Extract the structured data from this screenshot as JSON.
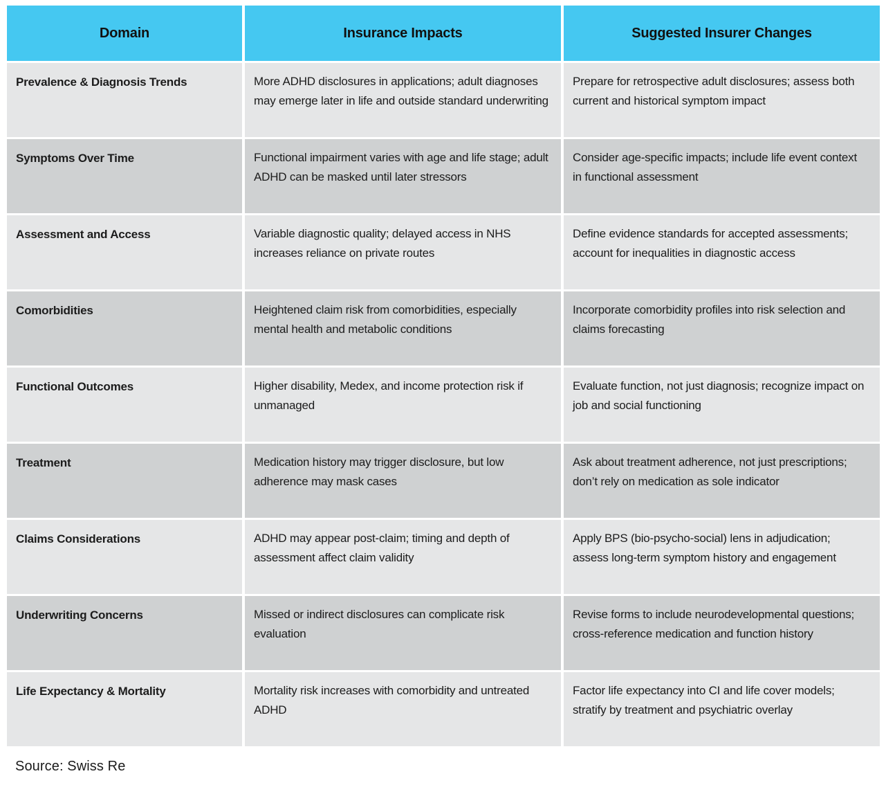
{
  "colors": {
    "header_bg": "#45C8F1",
    "row_light": "#E5E6E7",
    "row_dark": "#CFD1D2",
    "text": "#1C1C1C"
  },
  "header": {
    "domain": "Domain",
    "impacts": "Insurance Impacts",
    "changes": "Suggested Insurer Changes"
  },
  "rows": [
    {
      "domain": "Prevalence & Diagnosis Trends",
      "impacts": "More ADHD disclosures in applications; adult diagnoses may emerge later in life and outside standard underwriting",
      "changes": "Prepare for retrospective adult disclosures; assess both current and historical symptom impact"
    },
    {
      "domain": "Symptoms Over Time",
      "impacts": "Functional impairment varies with age and life stage; adult ADHD can be masked until later stressors",
      "changes": "Consider age-specific impacts; include life event context in functional assessment"
    },
    {
      "domain": "Assessment and Access",
      "impacts": "Variable diagnostic quality; delayed access in NHS increases reliance on private routes",
      "changes": "Define evidence standards for accepted assessments; account for inequalities in diagnostic access"
    },
    {
      "domain": "Comorbidities",
      "impacts": "Heightened claim risk from comorbidities, especially mental health and metabolic conditions",
      "changes": "Incorporate comorbidity profiles into risk selection and claims forecasting"
    },
    {
      "domain": "Functional Outcomes",
      "impacts": "Higher disability, Medex, and income protection risk if unmanaged",
      "changes": "Evaluate function, not just diagnosis; recognize impact on job and social functioning"
    },
    {
      "domain": "Treatment",
      "impacts": "Medication history may trigger disclosure, but low adherence may mask cases",
      "changes": "Ask about treatment adherence, not just prescriptions; don’t rely on medication as sole indicator"
    },
    {
      "domain": "Claims Considerations",
      "impacts": "ADHD may appear post-claim; timing and depth of assessment affect claim validity",
      "changes": "Apply BPS (bio-psycho-social) lens in adjudication; assess long-term symptom history and engagement"
    },
    {
      "domain": "Underwriting Concerns",
      "impacts": "Missed or indirect disclosures can complicate risk evaluation",
      "changes": "Revise forms to include neurodevelopmental questions; cross-reference medication and function history"
    },
    {
      "domain": "Life Expectancy & Mortality",
      "impacts": "Mortality risk increases with comorbidity and untreated ADHD",
      "changes": "Factor life expectancy into CI and life cover models; stratify by treatment and psychiatric overlay"
    }
  ],
  "source": "Source: Swiss Re"
}
